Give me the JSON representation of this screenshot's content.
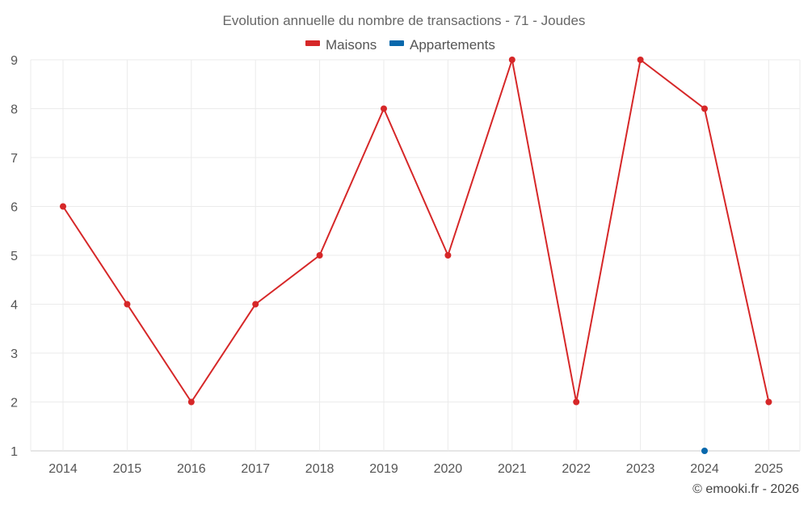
{
  "chart_data": {
    "type": "line",
    "title": "Evolution annuelle du nombre de transactions - 71 - Joudes",
    "categories": [
      "2014",
      "2015",
      "2016",
      "2017",
      "2018",
      "2019",
      "2020",
      "2021",
      "2022",
      "2023",
      "2024",
      "2025"
    ],
    "series": [
      {
        "name": "Maisons",
        "color": "#d62728",
        "values": [
          6,
          4,
          2,
          4,
          5,
          8,
          5,
          9,
          2,
          9,
          8,
          2
        ]
      },
      {
        "name": "Appartements",
        "color": "#0868ac",
        "values": [
          null,
          null,
          null,
          null,
          null,
          null,
          null,
          null,
          null,
          null,
          1,
          null
        ]
      }
    ],
    "ylim": [
      1,
      9
    ],
    "yticks": [
      "1",
      "2",
      "3",
      "4",
      "5",
      "6",
      "7",
      "8",
      "9"
    ],
    "xlabel": "",
    "ylabel": "",
    "grid": true,
    "legend_position": "top-center"
  },
  "credit": "© emooki.fr - 2026"
}
